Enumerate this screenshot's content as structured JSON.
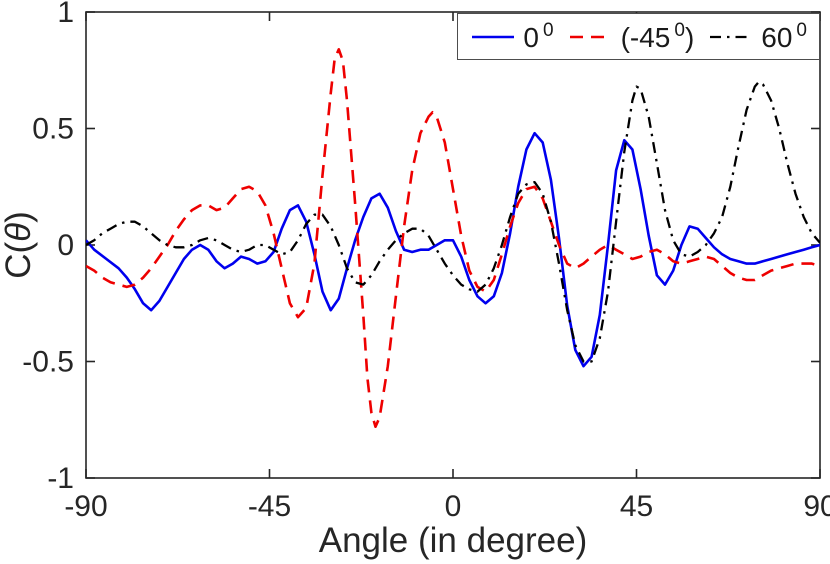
{
  "chart_data": {
    "type": "line",
    "title": "",
    "xlabel": "Angle (in degree)",
    "ylabel": "C(θ)",
    "ylabel_pre": "C(",
    "ylabel_italic": "θ",
    "ylabel_post": ")",
    "xlim": [
      -90,
      90
    ],
    "ylim": [
      -1,
      1
    ],
    "xticks": [
      -90,
      -45,
      0,
      45,
      90
    ],
    "xtick_labels": [
      "-90",
      "-45",
      "0",
      "45",
      "90"
    ],
    "yticks": [
      -1,
      -0.5,
      0,
      0.5,
      1
    ],
    "ytick_labels": [
      "-1",
      "-0.5",
      "0",
      "0.5",
      "1"
    ],
    "grid": false,
    "legend_position": "top-right",
    "axis_color": "#262626",
    "tick_label_color": "#262626",
    "background_color": "#ffffff",
    "series": [
      {
        "name": "0 degrees",
        "label_pre": "0",
        "label_sup": "0",
        "label_post": "",
        "color": "#0000ee",
        "style": "solid",
        "dash": "",
        "width": 2.6,
        "points": [
          [
            -90,
            0.02
          ],
          [
            -88,
            -0.02
          ],
          [
            -85,
            -0.06
          ],
          [
            -82,
            -0.1
          ],
          [
            -80,
            -0.14
          ],
          [
            -78,
            -0.19
          ],
          [
            -76,
            -0.25
          ],
          [
            -74,
            -0.28
          ],
          [
            -72,
            -0.24
          ],
          [
            -70,
            -0.18
          ],
          [
            -68,
            -0.12
          ],
          [
            -66,
            -0.06
          ],
          [
            -64,
            -0.02
          ],
          [
            -62,
            0.0
          ],
          [
            -60,
            -0.02
          ],
          [
            -58,
            -0.07
          ],
          [
            -56,
            -0.1
          ],
          [
            -54,
            -0.08
          ],
          [
            -52,
            -0.05
          ],
          [
            -50,
            -0.06
          ],
          [
            -48,
            -0.08
          ],
          [
            -46,
            -0.07
          ],
          [
            -44,
            -0.03
          ],
          [
            -42,
            0.07
          ],
          [
            -40,
            0.15
          ],
          [
            -38,
            0.17
          ],
          [
            -36,
            0.1
          ],
          [
            -34,
            -0.04
          ],
          [
            -32,
            -0.2
          ],
          [
            -30,
            -0.28
          ],
          [
            -28,
            -0.23
          ],
          [
            -26,
            -0.1
          ],
          [
            -24,
            0.02
          ],
          [
            -22,
            0.12
          ],
          [
            -20,
            0.2
          ],
          [
            -18,
            0.22
          ],
          [
            -16,
            0.16
          ],
          [
            -14,
            0.06
          ],
          [
            -12,
            -0.02
          ],
          [
            -10,
            -0.03
          ],
          [
            -8,
            -0.02
          ],
          [
            -6,
            -0.02
          ],
          [
            -4,
            0.0
          ],
          [
            -2,
            0.02
          ],
          [
            0,
            0.02
          ],
          [
            2,
            -0.05
          ],
          [
            4,
            -0.15
          ],
          [
            6,
            -0.22
          ],
          [
            8,
            -0.25
          ],
          [
            10,
            -0.22
          ],
          [
            12,
            -0.12
          ],
          [
            14,
            0.05
          ],
          [
            16,
            0.25
          ],
          [
            18,
            0.41
          ],
          [
            20,
            0.48
          ],
          [
            22,
            0.44
          ],
          [
            24,
            0.28
          ],
          [
            26,
            0.03
          ],
          [
            28,
            -0.26
          ],
          [
            30,
            -0.45
          ],
          [
            32,
            -0.52
          ],
          [
            34,
            -0.48
          ],
          [
            36,
            -0.3
          ],
          [
            38,
            0.0
          ],
          [
            40,
            0.32
          ],
          [
            42,
            0.45
          ],
          [
            44,
            0.41
          ],
          [
            46,
            0.24
          ],
          [
            48,
            0.04
          ],
          [
            50,
            -0.13
          ],
          [
            52,
            -0.17
          ],
          [
            54,
            -0.11
          ],
          [
            56,
            0.0
          ],
          [
            58,
            0.08
          ],
          [
            60,
            0.07
          ],
          [
            62,
            0.03
          ],
          [
            64,
            -0.01
          ],
          [
            66,
            -0.04
          ],
          [
            68,
            -0.06
          ],
          [
            70,
            -0.07
          ],
          [
            72,
            -0.08
          ],
          [
            74,
            -0.08
          ],
          [
            76,
            -0.07
          ],
          [
            78,
            -0.06
          ],
          [
            80,
            -0.05
          ],
          [
            82,
            -0.04
          ],
          [
            84,
            -0.03
          ],
          [
            86,
            -0.02
          ],
          [
            88,
            -0.01
          ],
          [
            90,
            0.0
          ]
        ]
      },
      {
        "name": "-45 degrees",
        "label_pre": "(-45",
        "label_sup": "0",
        "label_post": ")",
        "color": "#ee0000",
        "style": "dashed",
        "dash": "13 8",
        "width": 2.6,
        "points": [
          [
            -90,
            -0.09
          ],
          [
            -88,
            -0.11
          ],
          [
            -86,
            -0.14
          ],
          [
            -84,
            -0.16
          ],
          [
            -82,
            -0.17
          ],
          [
            -80,
            -0.18
          ],
          [
            -78,
            -0.17
          ],
          [
            -76,
            -0.14
          ],
          [
            -74,
            -0.1
          ],
          [
            -72,
            -0.05
          ],
          [
            -70,
            0.0
          ],
          [
            -68,
            0.06
          ],
          [
            -66,
            0.11
          ],
          [
            -64,
            0.15
          ],
          [
            -62,
            0.17
          ],
          [
            -60,
            0.17
          ],
          [
            -58,
            0.15
          ],
          [
            -56,
            0.16
          ],
          [
            -54,
            0.2
          ],
          [
            -52,
            0.24
          ],
          [
            -50,
            0.25
          ],
          [
            -48,
            0.23
          ],
          [
            -46,
            0.17
          ],
          [
            -44,
            0.05
          ],
          [
            -42,
            -0.1
          ],
          [
            -40,
            -0.25
          ],
          [
            -38,
            -0.31
          ],
          [
            -36,
            -0.27
          ],
          [
            -34,
            -0.08
          ],
          [
            -32,
            0.3
          ],
          [
            -30,
            0.65
          ],
          [
            -29,
            0.8
          ],
          [
            -28,
            0.84
          ],
          [
            -27,
            0.79
          ],
          [
            -26,
            0.62
          ],
          [
            -24,
            0.18
          ],
          [
            -22,
            -0.3
          ],
          [
            -21,
            -0.57
          ],
          [
            -20,
            -0.72
          ],
          [
            -19,
            -0.78
          ],
          [
            -18,
            -0.74
          ],
          [
            -16,
            -0.52
          ],
          [
            -14,
            -0.22
          ],
          [
            -12,
            0.08
          ],
          [
            -10,
            0.32
          ],
          [
            -8,
            0.48
          ],
          [
            -6,
            0.55
          ],
          [
            -5,
            0.57
          ],
          [
            -4,
            0.55
          ],
          [
            -2,
            0.44
          ],
          [
            0,
            0.24
          ],
          [
            2,
            0.04
          ],
          [
            4,
            -0.11
          ],
          [
            6,
            -0.18
          ],
          [
            8,
            -0.2
          ],
          [
            10,
            -0.15
          ],
          [
            12,
            -0.04
          ],
          [
            14,
            0.08
          ],
          [
            16,
            0.18
          ],
          [
            18,
            0.24
          ],
          [
            20,
            0.25
          ],
          [
            22,
            0.2
          ],
          [
            24,
            0.1
          ],
          [
            26,
            0.0
          ],
          [
            28,
            -0.08
          ],
          [
            30,
            -0.1
          ],
          [
            32,
            -0.08
          ],
          [
            34,
            -0.05
          ],
          [
            36,
            -0.02
          ],
          [
            38,
            0.0
          ],
          [
            40,
            -0.02
          ],
          [
            42,
            -0.04
          ],
          [
            44,
            -0.06
          ],
          [
            46,
            -0.05
          ],
          [
            48,
            -0.03
          ],
          [
            50,
            -0.02
          ],
          [
            52,
            -0.04
          ],
          [
            54,
            -0.07
          ],
          [
            56,
            -0.08
          ],
          [
            58,
            -0.07
          ],
          [
            60,
            -0.06
          ],
          [
            62,
            -0.05
          ],
          [
            64,
            -0.06
          ],
          [
            66,
            -0.09
          ],
          [
            68,
            -0.12
          ],
          [
            70,
            -0.14
          ],
          [
            72,
            -0.15
          ],
          [
            74,
            -0.15
          ],
          [
            76,
            -0.13
          ],
          [
            78,
            -0.11
          ],
          [
            80,
            -0.1
          ],
          [
            82,
            -0.09
          ],
          [
            84,
            -0.08
          ],
          [
            86,
            -0.08
          ],
          [
            88,
            -0.08
          ],
          [
            90,
            -0.09
          ]
        ]
      },
      {
        "name": "60 degrees",
        "label_pre": "60",
        "label_sup": "0",
        "label_post": "",
        "color": "#000000",
        "style": "dash-dot",
        "dash": "11 6 2.5 6",
        "width": 2.3,
        "points": [
          [
            -90,
            0.0
          ],
          [
            -88,
            0.02
          ],
          [
            -86,
            0.05
          ],
          [
            -84,
            0.07
          ],
          [
            -82,
            0.09
          ],
          [
            -80,
            0.1
          ],
          [
            -78,
            0.1
          ],
          [
            -76,
            0.08
          ],
          [
            -74,
            0.05
          ],
          [
            -72,
            0.02
          ],
          [
            -70,
            0.0
          ],
          [
            -68,
            -0.01
          ],
          [
            -66,
            -0.01
          ],
          [
            -64,
            0.0
          ],
          [
            -62,
            0.02
          ],
          [
            -60,
            0.03
          ],
          [
            -58,
            0.02
          ],
          [
            -56,
            0.0
          ],
          [
            -54,
            -0.02
          ],
          [
            -52,
            -0.03
          ],
          [
            -50,
            -0.02
          ],
          [
            -48,
            0.0
          ],
          [
            -46,
            0.0
          ],
          [
            -44,
            -0.02
          ],
          [
            -42,
            -0.04
          ],
          [
            -40,
            -0.03
          ],
          [
            -38,
            0.02
          ],
          [
            -36,
            0.09
          ],
          [
            -34,
            0.13
          ],
          [
            -32,
            0.13
          ],
          [
            -30,
            0.08
          ],
          [
            -28,
            0.0
          ],
          [
            -26,
            -0.1
          ],
          [
            -24,
            -0.16
          ],
          [
            -22,
            -0.17
          ],
          [
            -20,
            -0.13
          ],
          [
            -18,
            -0.07
          ],
          [
            -16,
            -0.02
          ],
          [
            -14,
            0.02
          ],
          [
            -12,
            0.05
          ],
          [
            -10,
            0.07
          ],
          [
            -8,
            0.07
          ],
          [
            -6,
            0.04
          ],
          [
            -4,
            -0.02
          ],
          [
            -2,
            -0.08
          ],
          [
            0,
            -0.13
          ],
          [
            2,
            -0.17
          ],
          [
            4,
            -0.19
          ],
          [
            6,
            -0.2
          ],
          [
            8,
            -0.17
          ],
          [
            10,
            -0.1
          ],
          [
            12,
            0.0
          ],
          [
            14,
            0.12
          ],
          [
            16,
            0.22
          ],
          [
            18,
            0.26
          ],
          [
            20,
            0.27
          ],
          [
            22,
            0.22
          ],
          [
            24,
            0.1
          ],
          [
            26,
            -0.08
          ],
          [
            28,
            -0.28
          ],
          [
            30,
            -0.43
          ],
          [
            32,
            -0.5
          ],
          [
            34,
            -0.5
          ],
          [
            36,
            -0.4
          ],
          [
            38,
            -0.2
          ],
          [
            40,
            0.1
          ],
          [
            42,
            0.4
          ],
          [
            44,
            0.62
          ],
          [
            45,
            0.68
          ],
          [
            46,
            0.67
          ],
          [
            48,
            0.55
          ],
          [
            50,
            0.35
          ],
          [
            52,
            0.15
          ],
          [
            54,
            0.02
          ],
          [
            56,
            -0.04
          ],
          [
            58,
            -0.05
          ],
          [
            60,
            -0.03
          ],
          [
            62,
            0.0
          ],
          [
            64,
            0.05
          ],
          [
            66,
            0.12
          ],
          [
            68,
            0.25
          ],
          [
            70,
            0.42
          ],
          [
            72,
            0.58
          ],
          [
            74,
            0.68
          ],
          [
            75,
            0.7
          ],
          [
            76,
            0.69
          ],
          [
            78,
            0.62
          ],
          [
            80,
            0.5
          ],
          [
            82,
            0.35
          ],
          [
            84,
            0.22
          ],
          [
            86,
            0.12
          ],
          [
            88,
            0.05
          ],
          [
            90,
            0.01
          ]
        ]
      }
    ]
  }
}
